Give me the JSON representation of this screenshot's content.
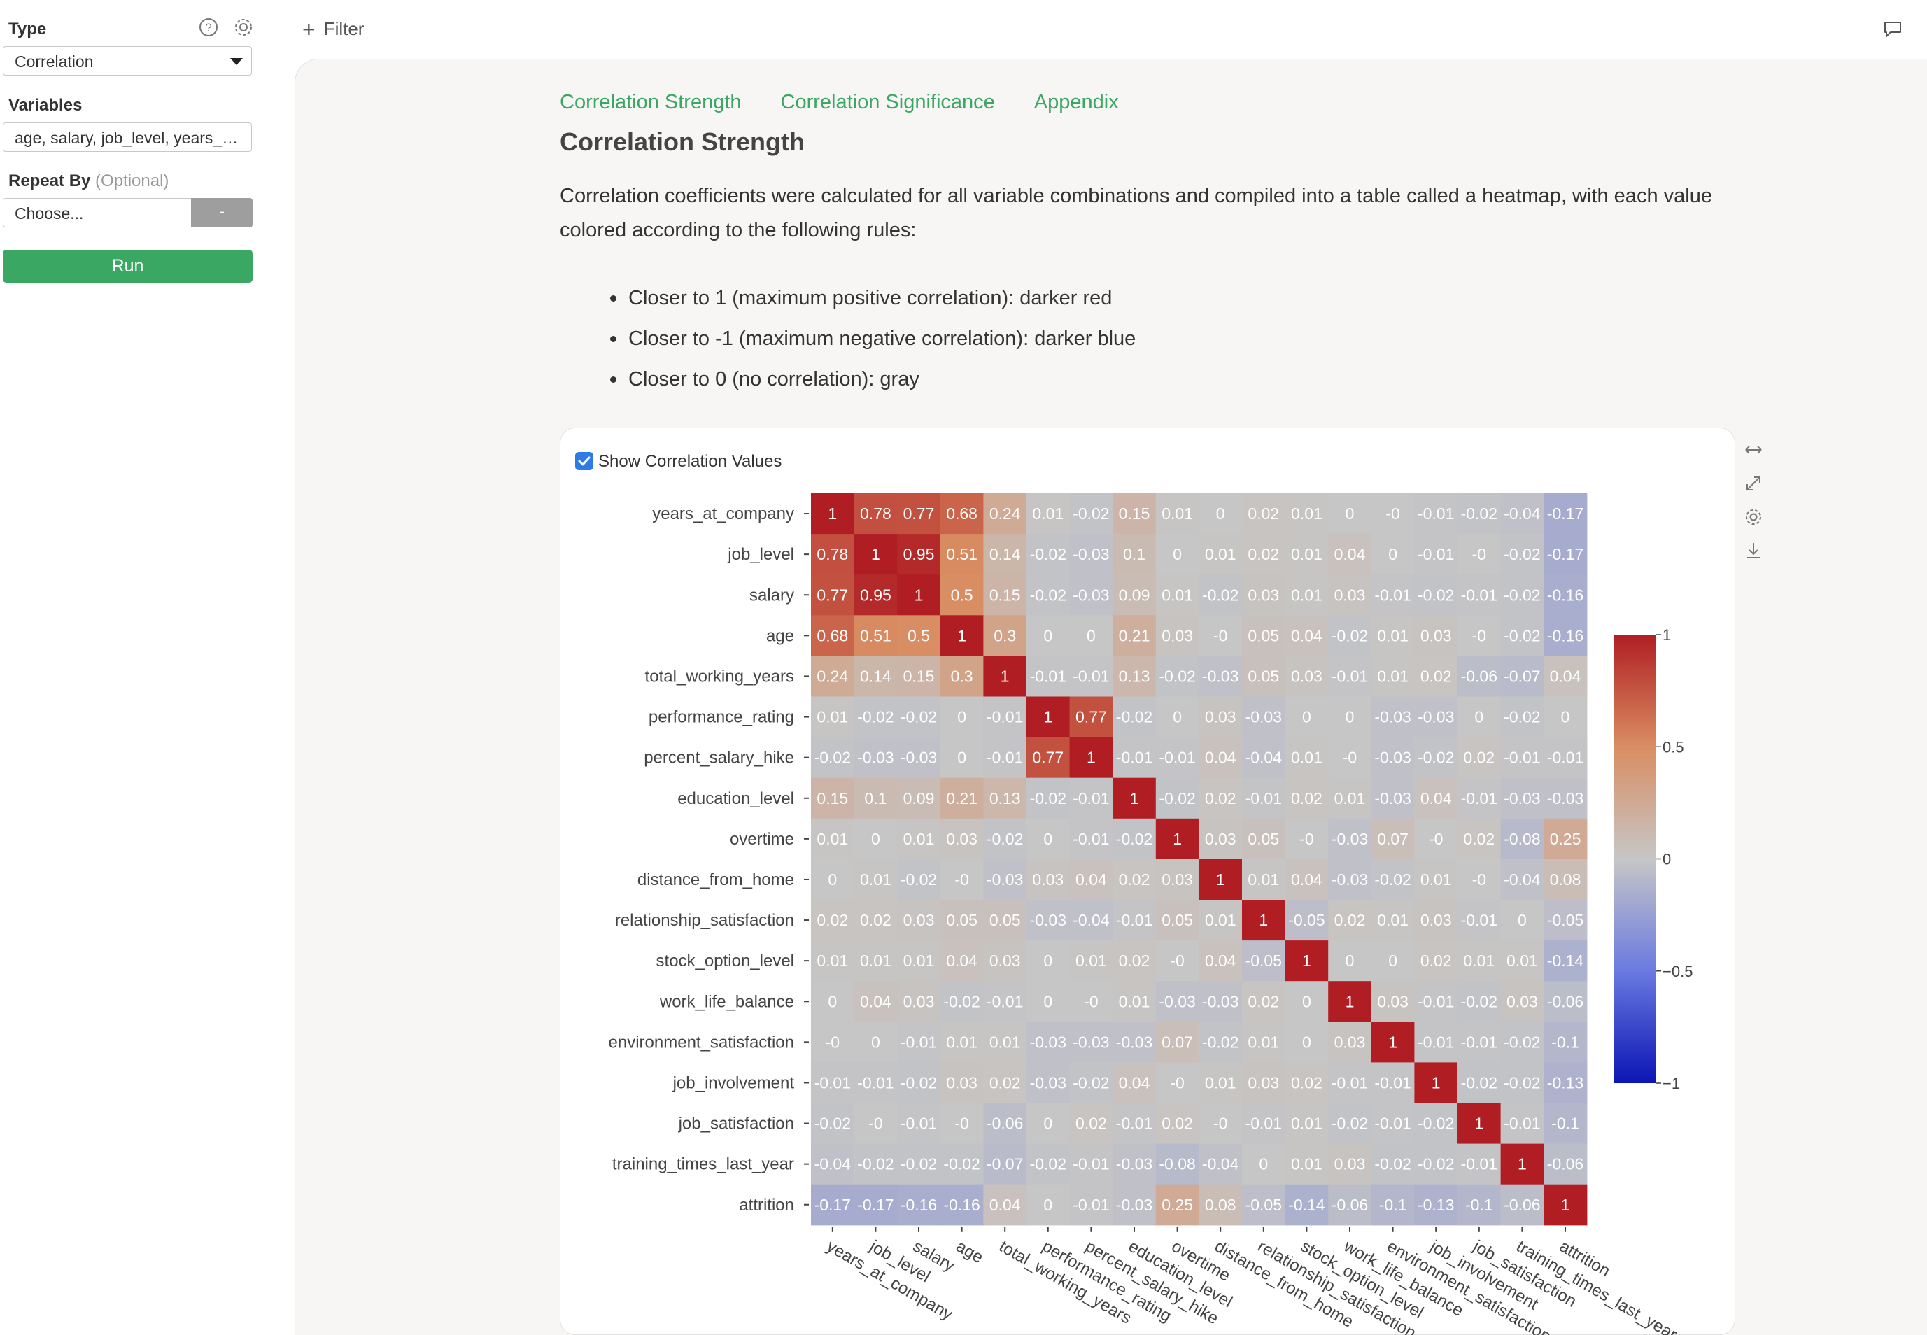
{
  "sidebar": {
    "type_label": "Type",
    "type_value": "Correlation",
    "variables_label": "Variables",
    "variables_value": "age, salary, job_level, years_at_company, total_working_years, performance_rating, percent_salary_hike, education_level, overtime, distance_from_home, relationship_satisfaction, stock_option_level, work_life_balance, environment_satisfaction, job_involvement, job_satisfaction, training_times_last_year, attrition",
    "repeat_label": "Repeat By",
    "repeat_optional": "(Optional)",
    "repeat_placeholder": "Choose...",
    "repeat_button": "-",
    "run_label": "Run"
  },
  "topbar": {
    "filter_label": "Filter"
  },
  "tabs": [
    "Correlation Strength",
    "Correlation Significance",
    "Appendix"
  ],
  "section_title": "Correlation Strength",
  "description": "Correlation coefficients were calculated for all variable combinations and compiled into a table called a heatmap, with each value colored according to the following rules:",
  "rules": [
    "Closer to 1 (maximum positive correlation): darker red",
    "Closer to -1 (maximum negative correlation): darker blue",
    "Closer to 0 (no correlation): gray"
  ],
  "show_values_label": "Show Correlation Values",
  "show_values_checked": true,
  "colors": {
    "accent": "#3aa763",
    "checkbox": "#2f7be6"
  },
  "icons": [
    "help-icon",
    "gear-icon",
    "plus-icon",
    "comment-icon",
    "expand-horizontal-icon",
    "fullscreen-icon",
    "settings-icon",
    "download-icon"
  ],
  "chart_data": {
    "type": "heatmap",
    "variables": [
      "years_at_company",
      "job_level",
      "salary",
      "age",
      "total_working_years",
      "performance_rating",
      "percent_salary_hike",
      "education_level",
      "overtime",
      "distance_from_home",
      "relationship_satisfaction",
      "stock_option_level",
      "work_life_balance",
      "environment_satisfaction",
      "job_involvement",
      "job_satisfaction",
      "training_times_last_year",
      "attrition"
    ],
    "matrix": [
      [
        "1",
        "0.78",
        "0.77",
        "0.68",
        "0.24",
        "0.01",
        "-0.02",
        "0.15",
        "0.01",
        "0",
        "0.02",
        "0.01",
        "0",
        "-0",
        "-0.01",
        "-0.02",
        "-0.04",
        "-0.17"
      ],
      [
        "0.78",
        "1",
        "0.95",
        "0.51",
        "0.14",
        "-0.02",
        "-0.03",
        "0.1",
        "0",
        "0.01",
        "0.02",
        "0.01",
        "0.04",
        "0",
        "-0.01",
        "-0",
        "-0.02",
        "-0.17"
      ],
      [
        "0.77",
        "0.95",
        "1",
        "0.5",
        "0.15",
        "-0.02",
        "-0.03",
        "0.09",
        "0.01",
        "-0.02",
        "0.03",
        "0.01",
        "0.03",
        "-0.01",
        "-0.02",
        "-0.01",
        "-0.02",
        "-0.16"
      ],
      [
        "0.68",
        "0.51",
        "0.5",
        "1",
        "0.3",
        "0",
        "0",
        "0.21",
        "0.03",
        "-0",
        "0.05",
        "0.04",
        "-0.02",
        "0.01",
        "0.03",
        "-0",
        "-0.02",
        "-0.16"
      ],
      [
        "0.24",
        "0.14",
        "0.15",
        "0.3",
        "1",
        "-0.01",
        "-0.01",
        "0.13",
        "-0.02",
        "-0.03",
        "0.05",
        "0.03",
        "-0.01",
        "0.01",
        "0.02",
        "-0.06",
        "-0.07",
        "0.04"
      ],
      [
        "0.01",
        "-0.02",
        "-0.02",
        "0",
        "-0.01",
        "1",
        "0.77",
        "-0.02",
        "0",
        "0.03",
        "-0.03",
        "0",
        "0",
        "-0.03",
        "-0.03",
        "0",
        "-0.02",
        "0"
      ],
      [
        "-0.02",
        "-0.03",
        "-0.03",
        "0",
        "-0.01",
        "0.77",
        "1",
        "-0.01",
        "-0.01",
        "0.04",
        "-0.04",
        "0.01",
        "-0",
        "-0.03",
        "-0.02",
        "0.02",
        "-0.01",
        "-0.01"
      ],
      [
        "0.15",
        "0.1",
        "0.09",
        "0.21",
        "0.13",
        "-0.02",
        "-0.01",
        "1",
        "-0.02",
        "0.02",
        "-0.01",
        "0.02",
        "0.01",
        "-0.03",
        "0.04",
        "-0.01",
        "-0.03",
        "-0.03"
      ],
      [
        "0.01",
        "0",
        "0.01",
        "0.03",
        "-0.02",
        "0",
        "-0.01",
        "-0.02",
        "1",
        "0.03",
        "0.05",
        "-0",
        "-0.03",
        "0.07",
        "-0",
        "0.02",
        "-0.08",
        "0.25"
      ],
      [
        "0",
        "0.01",
        "-0.02",
        "-0",
        "-0.03",
        "0.03",
        "0.04",
        "0.02",
        "0.03",
        "1",
        "0.01",
        "0.04",
        "-0.03",
        "-0.02",
        "0.01",
        "-0",
        "-0.04",
        "0.08"
      ],
      [
        "0.02",
        "0.02",
        "0.03",
        "0.05",
        "0.05",
        "-0.03",
        "-0.04",
        "-0.01",
        "0.05",
        "0.01",
        "1",
        "-0.05",
        "0.02",
        "0.01",
        "0.03",
        "-0.01",
        "0",
        "-0.05"
      ],
      [
        "0.01",
        "0.01",
        "0.01",
        "0.04",
        "0.03",
        "0",
        "0.01",
        "0.02",
        "-0",
        "0.04",
        "-0.05",
        "1",
        "0",
        "0",
        "0.02",
        "0.01",
        "0.01",
        "-0.14"
      ],
      [
        "0",
        "0.04",
        "0.03",
        "-0.02",
        "-0.01",
        "0",
        "-0",
        "0.01",
        "-0.03",
        "-0.03",
        "0.02",
        "0",
        "1",
        "0.03",
        "-0.01",
        "-0.02",
        "0.03",
        "-0.06"
      ],
      [
        "-0",
        "0",
        "-0.01",
        "0.01",
        "0.01",
        "-0.03",
        "-0.03",
        "-0.03",
        "0.07",
        "-0.02",
        "0.01",
        "0",
        "0.03",
        "1",
        "-0.01",
        "-0.01",
        "-0.02",
        "-0.1"
      ],
      [
        "-0.01",
        "-0.01",
        "-0.02",
        "0.03",
        "0.02",
        "-0.03",
        "-0.02",
        "0.04",
        "-0",
        "0.01",
        "0.03",
        "0.02",
        "-0.01",
        "-0.01",
        "1",
        "-0.02",
        "-0.02",
        "-0.13"
      ],
      [
        "-0.02",
        "-0",
        "-0.01",
        "-0",
        "-0.06",
        "0",
        "0.02",
        "-0.01",
        "0.02",
        "-0",
        "-0.01",
        "0.01",
        "-0.02",
        "-0.01",
        "-0.02",
        "1",
        "-0.01",
        "-0.1"
      ],
      [
        "-0.04",
        "-0.02",
        "-0.02",
        "-0.02",
        "-0.07",
        "-0.02",
        "-0.01",
        "-0.03",
        "-0.08",
        "-0.04",
        "0",
        "0.01",
        "0.03",
        "-0.02",
        "-0.02",
        "-0.01",
        "1",
        "-0.06"
      ],
      [
        "-0.17",
        "-0.17",
        "-0.16",
        "-0.16",
        "0.04",
        "0",
        "-0.01",
        "-0.03",
        "0.25",
        "0.08",
        "-0.05",
        "-0.14",
        "-0.06",
        "-0.1",
        "-0.13",
        "-0.1",
        "-0.06",
        "1"
      ]
    ],
    "colorscale": {
      "min": -1,
      "max": 1,
      "ticks": [
        "1",
        "0.5",
        "0",
        "−0.5",
        "−1"
      ],
      "low": "#0a15b5",
      "mid": "#c6c6c6",
      "high": "#b01e23"
    }
  }
}
